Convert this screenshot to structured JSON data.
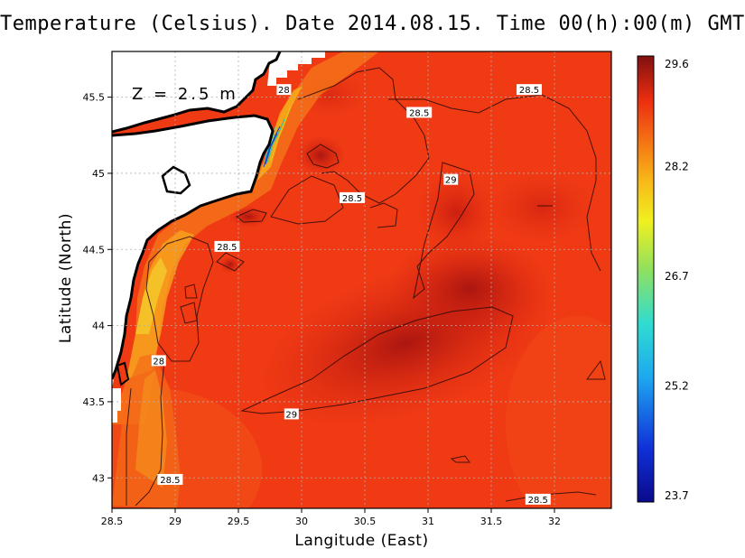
{
  "title": "Temperature (Celsius). Date 2014.08.15. Time 00(h):00(m) GMT",
  "depth_label": "Z = 2.5 m",
  "xlabel": "Langitude (East)",
  "ylabel": "Latitude (North)",
  "x_ticks": [
    "28.5",
    "29",
    "29.5",
    "30",
    "30.5",
    "31",
    "31.5",
    "32"
  ],
  "y_ticks": [
    "43",
    "43.5",
    "44",
    "44.5",
    "45",
    "45.5"
  ],
  "colorbar_ticks": [
    "29.6",
    "28.2",
    "26.7",
    "25.2",
    "23.7"
  ],
  "map_extent": {
    "lon": [
      28.5,
      32.45
    ],
    "lat": [
      42.8,
      45.8
    ]
  },
  "contour_labels": [
    {
      "text": "28",
      "lon": 29.86,
      "lat": 45.55
    },
    {
      "text": "28.5",
      "lon": 31.8,
      "lat": 45.55
    },
    {
      "text": "28.5",
      "lon": 30.93,
      "lat": 45.4
    },
    {
      "text": "29",
      "lon": 31.18,
      "lat": 44.96
    },
    {
      "text": "28.5",
      "lon": 30.4,
      "lat": 44.84
    },
    {
      "text": "28.5",
      "lon": 29.41,
      "lat": 44.52
    },
    {
      "text": "28",
      "lon": 28.87,
      "lat": 43.77
    },
    {
      "text": "29",
      "lon": 29.92,
      "lat": 43.42
    },
    {
      "text": "28.5",
      "lon": 28.96,
      "lat": 42.99
    },
    {
      "text": "28.5",
      "lon": 31.87,
      "lat": 42.86
    }
  ],
  "colors": {
    "sea_base": "#f23b14",
    "warm_core": "#b51911",
    "coastal_cool": "#f6b91e",
    "land": "#ffffff"
  }
}
